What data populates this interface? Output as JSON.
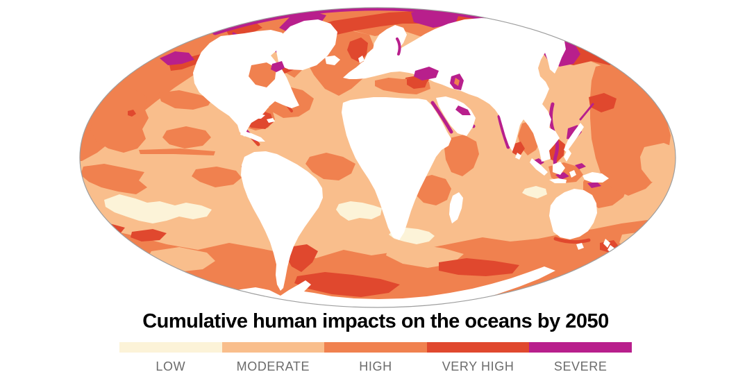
{
  "title": "Cumulative human impacts on the oceans by 2050",
  "legend": {
    "label_color": "#6B6B6B",
    "categories": [
      {
        "label": "LOW",
        "color": "#FCF3D8"
      },
      {
        "label": "MODERATE",
        "color": "#F9BE8C"
      },
      {
        "label": "HIGH",
        "color": "#F0814F"
      },
      {
        "label": "VERY HIGH",
        "color": "#E0482E"
      },
      {
        "label": "SEVERE",
        "color": "#B81F8C"
      }
    ]
  },
  "map": {
    "type": "world-choropleth",
    "projection": "mollweide-ellipse",
    "colors": {
      "low": "#FCF3D8",
      "moderate": "#F9BE8C",
      "high": "#F0814F",
      "very_high": "#E0482E",
      "severe": "#B81F8C",
      "land": "#FFFFFF",
      "outline": "#9E9E9E"
    }
  }
}
